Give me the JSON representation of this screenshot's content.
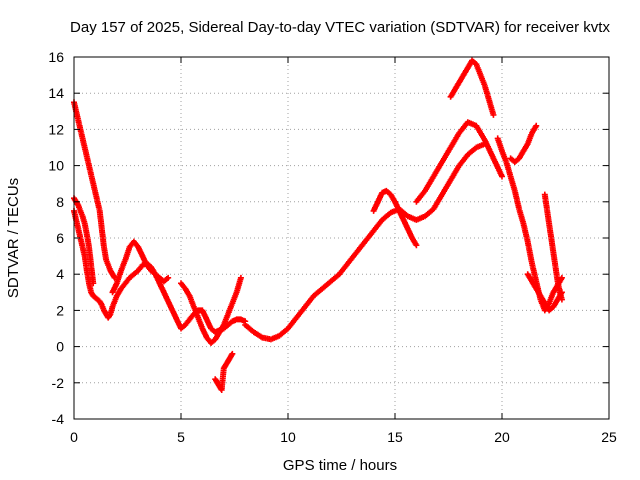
{
  "chart_data": {
    "type": "scatter",
    "title": "Day 157 of 2025, Sidereal Day-to-day VTEC variation (SDTVAR) for receiver kvtx",
    "xlabel": "GPS time / hours",
    "ylabel": "SDTVAR / TECUs",
    "xlim": [
      0,
      25
    ],
    "ylim": [
      -4,
      16
    ],
    "xticks": [
      "0",
      "5",
      "10",
      "15",
      "20",
      "25"
    ],
    "yticks": [
      "-4",
      "-2",
      "0",
      "2",
      "4",
      "6",
      "8",
      "10",
      "12",
      "14",
      "16"
    ],
    "grid": true,
    "marker": "+",
    "color": "#ff0000",
    "series": [
      {
        "x": [
          0.0,
          0.1,
          0.2,
          0.3,
          0.4,
          0.5,
          0.6,
          0.7,
          0.8,
          0.9,
          1.0,
          1.1,
          1.2,
          1.3,
          1.4,
          1.5,
          1.6,
          1.7,
          1.8,
          1.9,
          2.0,
          2.2,
          2.4,
          2.6,
          2.8,
          3.0,
          3.2,
          3.4,
          3.6,
          3.8,
          4.0,
          4.2,
          4.4,
          4.6,
          4.8,
          5.0,
          5.2,
          5.4,
          5.6,
          5.8,
          6.0,
          6.2,
          6.4,
          6.6,
          6.8,
          7.0,
          7.2,
          7.4,
          7.6,
          7.8,
          8.0
        ],
        "y": [
          7.5,
          7.0,
          6.5,
          6.0,
          5.5,
          5.0,
          4.2,
          3.5,
          3.0,
          2.8,
          2.7,
          2.6,
          2.5,
          2.3,
          2.0,
          1.8,
          1.6,
          1.8,
          2.2,
          2.5,
          2.8,
          3.2,
          3.5,
          3.8,
          4.0,
          4.2,
          4.5,
          4.6,
          4.4,
          4.0,
          3.5,
          3.0,
          2.5,
          2.0,
          1.5,
          1.0,
          1.2,
          1.5,
          1.8,
          2.0,
          2.0,
          1.5,
          1.0,
          0.8,
          0.9,
          1.0,
          1.2,
          1.4,
          1.5,
          1.5,
          1.4
        ]
      },
      {
        "x": [
          0.0,
          0.1,
          0.2,
          0.3,
          0.4,
          0.5,
          0.6,
          0.7,
          0.8,
          0.9,
          1.0,
          1.1,
          1.2,
          1.3,
          1.4,
          1.5,
          1.6,
          1.7,
          1.8,
          1.9
        ],
        "y": [
          13.5,
          13.0,
          12.5,
          12.0,
          11.5,
          11.0,
          10.5,
          10.0,
          9.5,
          9.0,
          8.5,
          8.0,
          7.5,
          6.5,
          5.5,
          4.8,
          4.5,
          4.2,
          4.0,
          3.8
        ]
      },
      {
        "x": [
          0.0,
          0.1,
          0.2,
          0.3,
          0.4,
          0.5,
          0.6,
          0.7,
          0.8,
          0.9
        ],
        "y": [
          8.2,
          8.0,
          7.8,
          7.5,
          7.2,
          6.8,
          6.2,
          5.5,
          4.5,
          3.5
        ]
      },
      {
        "x": [
          1.8,
          2.0,
          2.2,
          2.4,
          2.6,
          2.8,
          3.0,
          3.2,
          3.4,
          3.6,
          3.8,
          4.0,
          4.2,
          4.4
        ],
        "y": [
          3.0,
          3.5,
          4.2,
          4.8,
          5.5,
          5.8,
          5.5,
          5.0,
          4.5,
          4.2,
          4.0,
          3.8,
          3.6,
          3.8
        ]
      },
      {
        "x": [
          5.0,
          5.2,
          5.4,
          5.6,
          5.8,
          6.0,
          6.2,
          6.4,
          6.6,
          6.8,
          7.0,
          7.2,
          7.4,
          7.6,
          7.8
        ],
        "y": [
          3.5,
          3.2,
          2.8,
          2.2,
          1.6,
          1.0,
          0.5,
          0.2,
          0.4,
          0.8,
          1.2,
          1.8,
          2.4,
          3.0,
          3.8
        ]
      },
      {
        "x": [
          6.6,
          6.7,
          6.8,
          6.9,
          7.0,
          7.1,
          7.2,
          7.3,
          7.4
        ],
        "y": [
          -1.8,
          -2.0,
          -2.2,
          -2.4,
          -1.2,
          -1.0,
          -0.8,
          -0.6,
          -0.4
        ]
      },
      {
        "x": [
          8.0,
          8.4,
          8.8,
          9.2,
          9.6,
          10.0,
          10.4,
          10.8,
          11.2,
          11.6,
          12.0,
          12.4,
          12.8,
          13.2,
          13.6,
          14.0,
          14.4,
          14.8,
          15.2,
          15.6,
          16.0,
          16.4,
          16.8,
          17.2,
          17.6,
          18.0,
          18.4,
          18.8,
          19.2
        ],
        "y": [
          1.2,
          0.8,
          0.5,
          0.4,
          0.6,
          1.0,
          1.6,
          2.2,
          2.8,
          3.2,
          3.6,
          4.0,
          4.6,
          5.2,
          5.8,
          6.4,
          7.0,
          7.4,
          7.6,
          7.2,
          7.0,
          7.2,
          7.6,
          8.4,
          9.2,
          10.0,
          10.6,
          11.0,
          11.2
        ]
      },
      {
        "x": [
          14.0,
          14.2,
          14.4,
          14.6,
          14.8,
          15.0,
          15.2,
          15.4,
          15.6,
          15.8,
          16.0
        ],
        "y": [
          7.5,
          8.0,
          8.5,
          8.6,
          8.4,
          8.0,
          7.5,
          7.0,
          6.5,
          6.0,
          5.6
        ]
      },
      {
        "x": [
          16.0,
          16.4,
          16.8,
          17.2,
          17.6,
          18.0,
          18.4,
          18.8,
          19.2,
          19.6,
          20.0
        ],
        "y": [
          8.0,
          8.6,
          9.4,
          10.2,
          11.0,
          11.8,
          12.4,
          12.2,
          11.4,
          10.4,
          9.4
        ]
      },
      {
        "x": [
          17.6,
          17.8,
          18.0,
          18.2,
          18.4,
          18.6,
          18.8,
          19.0,
          19.2,
          19.4,
          19.6
        ],
        "y": [
          13.8,
          14.2,
          14.6,
          15.0,
          15.4,
          15.8,
          15.6,
          15.0,
          14.4,
          13.6,
          12.8
        ]
      },
      {
        "x": [
          19.8,
          20.0,
          20.2,
          20.4,
          20.6,
          20.8,
          21.0,
          21.2,
          21.4,
          21.6,
          21.8,
          22.0,
          22.2,
          22.4,
          22.6,
          22.8
        ],
        "y": [
          11.5,
          10.8,
          10.2,
          9.4,
          8.6,
          7.6,
          6.8,
          5.8,
          4.6,
          3.6,
          2.6,
          2.0,
          2.4,
          3.0,
          3.4,
          3.8
        ]
      },
      {
        "x": [
          20.4,
          20.6,
          20.8,
          21.0,
          21.2,
          21.4,
          21.6
        ],
        "y": [
          10.4,
          10.2,
          10.4,
          10.8,
          11.2,
          11.8,
          12.2
        ]
      },
      {
        "x": [
          21.2,
          21.4,
          21.6,
          21.8,
          22.0,
          22.2,
          22.4,
          22.6,
          22.8
        ],
        "y": [
          4.0,
          3.6,
          3.2,
          2.8,
          2.4,
          2.0,
          2.2,
          2.6,
          3.0
        ]
      },
      {
        "x": [
          22.0,
          22.1,
          22.2,
          22.3,
          22.4,
          22.5,
          22.6,
          22.7,
          22.8
        ],
        "y": [
          8.4,
          7.6,
          6.8,
          6.0,
          5.2,
          4.4,
          3.6,
          3.0,
          2.6
        ]
      }
    ]
  }
}
